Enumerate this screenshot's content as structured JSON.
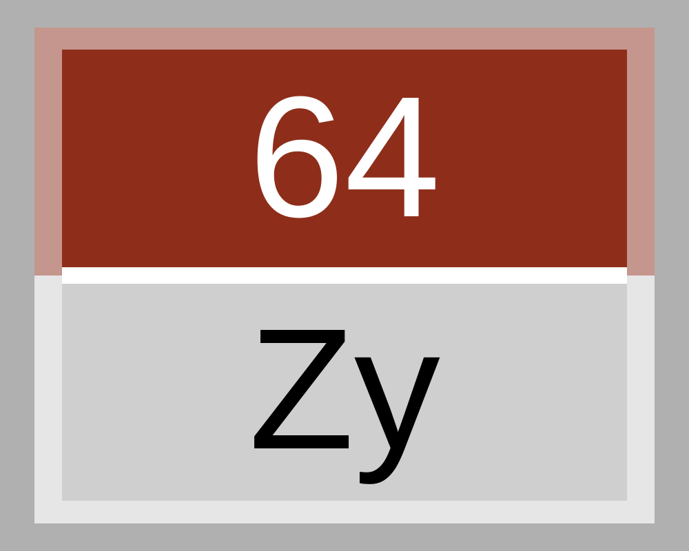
{
  "tile": {
    "value": "64",
    "label": "Zy"
  },
  "colors": {
    "background": "#b0b0b0",
    "top_frame": "#c4968d",
    "top_panel": "#8e2e1a",
    "divider": "#ffffff",
    "bottom_frame": "#e6e6e6",
    "bottom_panel": "#cfcfcf",
    "value_text": "#ffffff",
    "label_text": "#000000"
  }
}
